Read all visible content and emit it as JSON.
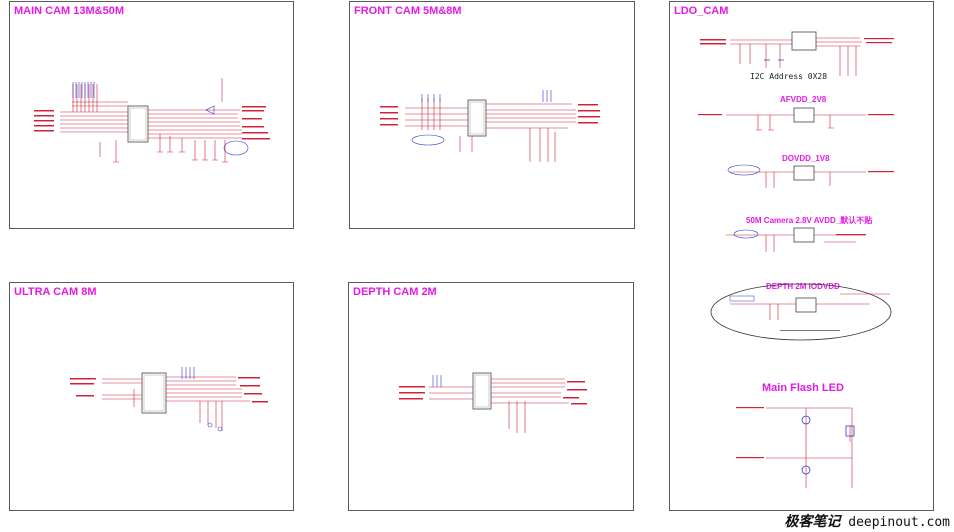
{
  "panels": {
    "main_cam": {
      "title": "MAIN CAM 13M&50M"
    },
    "front_cam": {
      "title": "FRONT CAM 5M&8M"
    },
    "ultra_cam": {
      "title": "ULTRA  CAM  8M"
    },
    "depth_cam": {
      "title": "DEPTH CAM 2M"
    },
    "ldo_cam": {
      "title": "LDO_CAM",
      "i2c_note": "I2C Address 0X28",
      "sections": {
        "afvdd": "AFVDD_2V8",
        "dovdd": "DOVDD_1V8",
        "avdd_50m": "50M Camera 2.8V AVDD_默认不贴",
        "depth_iodvdd": "DEPTH 2M IODVDD",
        "main_flash": "Main Flash LED"
      }
    }
  },
  "watermark": {
    "cn": "极客笔记",
    "domain": "deepinout.com"
  },
  "colors": {
    "wire": "#d0203a",
    "net_blue": "#2a3cc8",
    "title": "#e619e6",
    "frame": "#5a5a5a"
  }
}
